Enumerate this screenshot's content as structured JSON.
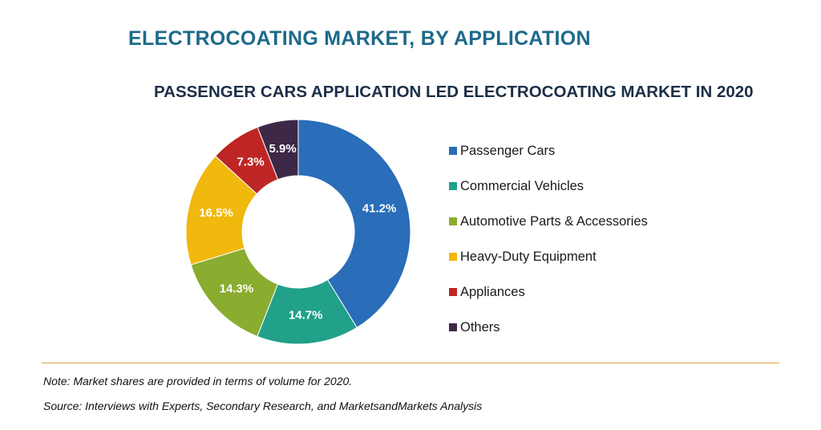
{
  "title": "ELECTROCOATING MARKET, BY APPLICATION",
  "subtitle": "PASSENGER CARS APPLICATION LED ELECTROCOATING MARKET IN 2020",
  "note": "Note: Market shares are provided in terms of volume for 2020.",
  "source": "Source: Interviews with Experts, Secondary Research, and MarketsandMarkets Analysis",
  "chart_data": {
    "type": "pie",
    "style": "donut",
    "categories": [
      "Passenger Cars",
      "Commercial Vehicles",
      "Automotive Parts & Accessories",
      "Heavy-Duty Equipment",
      "Appliances",
      "Others"
    ],
    "values": [
      41.2,
      14.7,
      14.3,
      16.5,
      7.3,
      5.9
    ],
    "labels": [
      "41.2%",
      "14.7%",
      "14.3%",
      "16.5%",
      "7.3%",
      "5.9%"
    ],
    "colors": [
      "#2a6db8",
      "#21a08a",
      "#8aac2f",
      "#f1b80d",
      "#bd2624",
      "#3e2847"
    ],
    "label_colors": [
      "#ffffff",
      "#ffffff",
      "#ffffff",
      "#ffffff",
      "#ffffff",
      "#ffffff"
    ],
    "legend_position": "right"
  }
}
